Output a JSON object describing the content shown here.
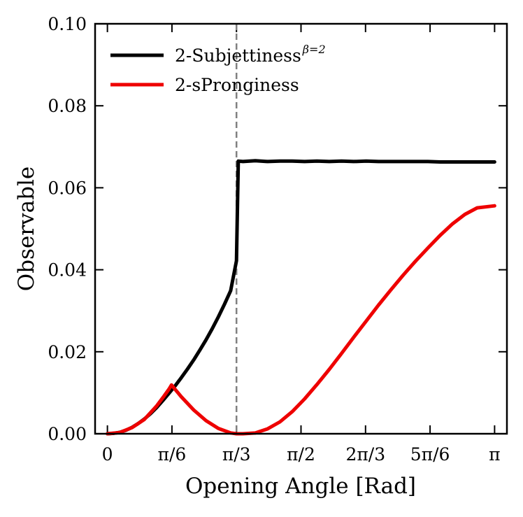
{
  "chart_data": {
    "type": "line",
    "title": "",
    "xlabel": "Opening Angle [Rad]",
    "ylabel": "Observable",
    "xlim": [
      -0.1,
      3.2416
    ],
    "ylim": [
      0.0,
      0.1
    ],
    "x_ticks": [
      {
        "value": 0.0,
        "label": "0"
      },
      {
        "value": 0.5236,
        "label": "π/6"
      },
      {
        "value": 1.0472,
        "label": "π/3"
      },
      {
        "value": 1.5708,
        "label": "π/2"
      },
      {
        "value": 2.0944,
        "label": "2π/3"
      },
      {
        "value": 2.618,
        "label": "5π/6"
      },
      {
        "value": 3.1416,
        "label": "π"
      }
    ],
    "y_ticks": [
      {
        "value": 0.0,
        "label": "0.00"
      },
      {
        "value": 0.02,
        "label": "0.02"
      },
      {
        "value": 0.04,
        "label": "0.04"
      },
      {
        "value": 0.06,
        "label": "0.06"
      },
      {
        "value": 0.08,
        "label": "0.08"
      },
      {
        "value": 0.1,
        "label": "0.10"
      }
    ],
    "vline": {
      "x": 1.0472,
      "style": "dashed",
      "color": "#808080"
    },
    "series": [
      {
        "name": "2-Subjettiness",
        "name_superscript": "β=2",
        "color": "#000000",
        "x": [
          0.0,
          0.05,
          0.1,
          0.15,
          0.2,
          0.25,
          0.3,
          0.35,
          0.4,
          0.45,
          0.5,
          0.55,
          0.6,
          0.65,
          0.7,
          0.75,
          0.8,
          0.85,
          0.9,
          0.95,
          1.0,
          1.0472,
          1.062,
          1.1,
          1.2,
          1.3,
          1.4,
          1.5,
          1.6,
          1.7,
          1.8,
          1.9,
          2.0,
          2.1,
          2.2,
          2.3,
          2.4,
          2.5,
          2.6,
          2.7,
          2.8,
          2.9,
          3.0,
          3.1416
        ],
        "y": [
          0.0,
          0.0001,
          0.00035,
          0.00085,
          0.00155,
          0.0025,
          0.0036,
          0.0049,
          0.0064,
          0.0081,
          0.0099,
          0.0117,
          0.0137,
          0.0158,
          0.018,
          0.0204,
          0.0229,
          0.0256,
          0.0285,
          0.0316,
          0.0349,
          0.0422,
          0.0665,
          0.0664,
          0.0666,
          0.0664,
          0.0665,
          0.0665,
          0.0664,
          0.0665,
          0.0664,
          0.0665,
          0.0664,
          0.0665,
          0.0664,
          0.0664,
          0.0664,
          0.0664,
          0.0664,
          0.0663,
          0.0663,
          0.0663,
          0.0663,
          0.0663
        ]
      },
      {
        "name": "2-sPronginess",
        "color": "#ee0000",
        "x": [
          0.0,
          0.1,
          0.2,
          0.3,
          0.4,
          0.45,
          0.5,
          0.52,
          0.55,
          0.6,
          0.7,
          0.8,
          0.9,
          1.0,
          1.0472,
          1.1,
          1.2,
          1.3,
          1.4,
          1.5,
          1.6,
          1.7,
          1.8,
          1.9,
          2.0,
          2.1,
          2.2,
          2.3,
          2.4,
          2.5,
          2.6,
          2.7,
          2.8,
          2.9,
          3.0,
          3.1416
        ],
        "y": [
          0.0,
          0.0003,
          0.0015,
          0.0035,
          0.0068,
          0.0088,
          0.0109,
          0.0119,
          0.0108,
          0.009,
          0.0058,
          0.0032,
          0.0013,
          0.0002,
          0.0,
          0.0,
          0.0002,
          0.0012,
          0.0029,
          0.0054,
          0.0085,
          0.012,
          0.0157,
          0.0196,
          0.0236,
          0.0275,
          0.0314,
          0.0351,
          0.0387,
          0.0421,
          0.0453,
          0.0484,
          0.0512,
          0.0535,
          0.0551,
          0.0556
        ]
      }
    ],
    "legend": {
      "placement": "upper-left"
    }
  }
}
